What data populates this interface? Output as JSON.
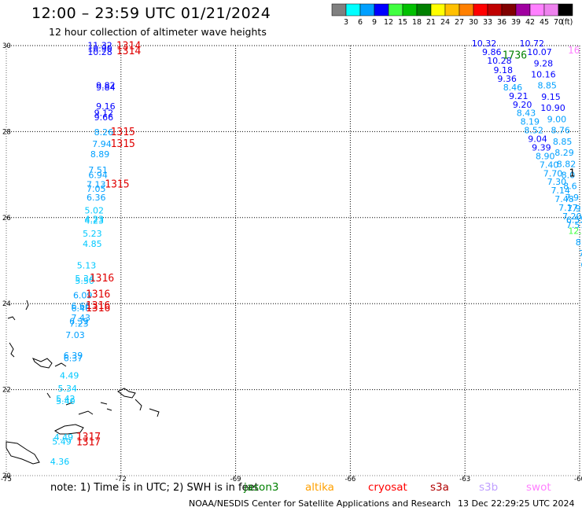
{
  "header": {
    "title": "12:00 – 23:59 UTC 01/21/2024",
    "subtitle": "12 hour collection of altimeter wave heights"
  },
  "colorbar": {
    "unit": "(ft)",
    "ticks": [
      "3",
      "6",
      "9",
      "12",
      "15",
      "18",
      "21",
      "24",
      "27",
      "30",
      "33",
      "36",
      "39",
      "42",
      "45",
      "70"
    ],
    "colors": [
      "#808080",
      "#00ffff",
      "#00a0ff",
      "#0000ff",
      "#40ff40",
      "#00c000",
      "#008000",
      "#ffff00",
      "#ffc000",
      "#ff8000",
      "#ff0000",
      "#c00000",
      "#800000",
      "#a000a0",
      "#ff80ff",
      "#ee82ee",
      "#000000"
    ]
  },
  "map": {
    "lon_min": -75,
    "lon_max": -60,
    "lat_min": 20,
    "lat_max": 30,
    "lon_ticks": [
      "-75",
      "-72",
      "-69",
      "-66",
      "-63",
      "-60"
    ],
    "lat_ticks": [
      "30",
      "28",
      "26",
      "24",
      "22",
      "20"
    ],
    "obs_track_a": [
      {
        "lon": -72.55,
        "lat": 29.94,
        "v": "11.32",
        "c": "#0000ff"
      },
      {
        "lon": -72.55,
        "lat": 29.86,
        "v": "10.90",
        "c": "#0000ff"
      },
      {
        "lon": -72.55,
        "lat": 29.78,
        "v": "10.28",
        "c": "#0000ff"
      },
      {
        "lon": -72.4,
        "lat": 29.0,
        "v": "9.82",
        "c": "#0000ff"
      },
      {
        "lon": -72.4,
        "lat": 28.96,
        "v": "9.84",
        "c": "#0000ff"
      },
      {
        "lon": -72.4,
        "lat": 28.52,
        "v": "9.16",
        "c": "#0000ff"
      },
      {
        "lon": -72.45,
        "lat": 28.36,
        "v": "9.12",
        "c": "#0000ff"
      },
      {
        "lon": -72.45,
        "lat": 28.26,
        "v": "9.66",
        "c": "#0000ff"
      },
      {
        "lon": -72.45,
        "lat": 27.92,
        "v": "8.26",
        "c": "#00a0ff"
      },
      {
        "lon": -72.5,
        "lat": 27.64,
        "v": "7.94",
        "c": "#00a0ff"
      },
      {
        "lon": -72.55,
        "lat": 27.4,
        "v": "8.89",
        "c": "#00a0ff"
      },
      {
        "lon": -72.6,
        "lat": 27.04,
        "v": "7.51",
        "c": "#00a0ff"
      },
      {
        "lon": -72.6,
        "lat": 26.92,
        "v": "6.94",
        "c": "#00a0ff"
      },
      {
        "lon": -72.65,
        "lat": 26.7,
        "v": "7.13",
        "c": "#00a0ff"
      },
      {
        "lon": -72.65,
        "lat": 26.6,
        "v": "7.05",
        "c": "#00a0ff"
      },
      {
        "lon": -72.65,
        "lat": 26.4,
        "v": "6.36",
        "c": "#00a0ff"
      },
      {
        "lon": -72.7,
        "lat": 26.1,
        "v": "5.02",
        "c": "#00c8ff"
      },
      {
        "lon": -72.7,
        "lat": 25.9,
        "v": "4.23",
        "c": "#00c8ff"
      },
      {
        "lon": -72.7,
        "lat": 25.86,
        "v": "4.23",
        "c": "#00c8ff"
      },
      {
        "lon": -72.75,
        "lat": 25.56,
        "v": "5.23",
        "c": "#00c8ff"
      },
      {
        "lon": -72.75,
        "lat": 25.32,
        "v": "4.85",
        "c": "#00c8ff"
      },
      {
        "lon": -72.9,
        "lat": 24.82,
        "v": "5.13",
        "c": "#00c8ff"
      },
      {
        "lon": -72.95,
        "lat": 24.52,
        "v": "5.34",
        "c": "#00c8ff"
      },
      {
        "lon": -72.95,
        "lat": 24.46,
        "v": "5.50",
        "c": "#00c8ff"
      },
      {
        "lon": -73.0,
        "lat": 24.12,
        "v": "6.09",
        "c": "#00a0ff"
      },
      {
        "lon": -73.05,
        "lat": 23.88,
        "v": "6.66",
        "c": "#00a0ff"
      },
      {
        "lon": -73.05,
        "lat": 23.82,
        "v": "6.46",
        "c": "#00a0ff"
      },
      {
        "lon": -73.05,
        "lat": 23.6,
        "v": "7.43",
        "c": "#00a0ff"
      },
      {
        "lon": -73.1,
        "lat": 23.52,
        "v": "6.39",
        "c": "#00a0ff"
      },
      {
        "lon": -73.1,
        "lat": 23.46,
        "v": "7.23",
        "c": "#00a0ff"
      },
      {
        "lon": -73.2,
        "lat": 23.2,
        "v": "7.03",
        "c": "#00a0ff"
      },
      {
        "lon": -73.25,
        "lat": 22.72,
        "v": "6.39",
        "c": "#00a0ff"
      },
      {
        "lon": -73.25,
        "lat": 22.66,
        "v": "6.37",
        "c": "#00a0ff"
      },
      {
        "lon": -73.35,
        "lat": 22.26,
        "v": "4.49",
        "c": "#00c8ff"
      },
      {
        "lon": -73.4,
        "lat": 21.96,
        "v": "5.34",
        "c": "#00c8ff"
      },
      {
        "lon": -73.45,
        "lat": 21.72,
        "v": "5.42",
        "c": "#00c8ff"
      },
      {
        "lon": -73.45,
        "lat": 21.66,
        "v": "5.40",
        "c": "#00c8ff"
      },
      {
        "lon": -73.5,
        "lat": 20.82,
        "v": "4.49",
        "c": "#00c8ff"
      },
      {
        "lon": -73.55,
        "lat": 20.72,
        "v": "5.49",
        "c": "#00c8ff"
      },
      {
        "lon": -73.6,
        "lat": 20.26,
        "v": "4.36",
        "c": "#00c8ff"
      }
    ],
    "pass_times_a": [
      {
        "lon": -71.8,
        "lat": 29.92,
        "v": "1314"
      },
      {
        "lon": -71.8,
        "lat": 29.8,
        "v": "1314"
      },
      {
        "lon": -71.95,
        "lat": 27.92,
        "v": "1315"
      },
      {
        "lon": -71.95,
        "lat": 27.64,
        "v": "1315"
      },
      {
        "lon": -72.1,
        "lat": 26.7,
        "v": "1315"
      },
      {
        "lon": -72.5,
        "lat": 24.52,
        "v": "1316"
      },
      {
        "lon": -72.6,
        "lat": 24.14,
        "v": "1316"
      },
      {
        "lon": -72.6,
        "lat": 23.88,
        "v": "1316"
      },
      {
        "lon": -72.6,
        "lat": 23.82,
        "v": "1316"
      },
      {
        "lon": -72.85,
        "lat": 20.82,
        "v": "1317"
      },
      {
        "lon": -72.85,
        "lat": 20.7,
        "v": "1317"
      }
    ],
    "obs_track_b": [
      {
        "lon": -62.5,
        "lat": 29.98,
        "v": "10.32",
        "c": "#0000ff"
      },
      {
        "lon": -62.3,
        "lat": 29.78,
        "v": "9.86",
        "c": "#0000ff"
      },
      {
        "lon": -62.1,
        "lat": 29.58,
        "v": "10.28",
        "c": "#0000ff"
      },
      {
        "lon": -62.0,
        "lat": 29.36,
        "v": "9.18",
        "c": "#0000ff"
      },
      {
        "lon": -61.9,
        "lat": 29.16,
        "v": "9.36",
        "c": "#0000ff"
      },
      {
        "lon": -61.75,
        "lat": 28.96,
        "v": "8.46",
        "c": "#00a0ff"
      },
      {
        "lon": -61.6,
        "lat": 28.76,
        "v": "9.21",
        "c": "#0000ff"
      },
      {
        "lon": -61.5,
        "lat": 28.56,
        "v": "9.20",
        "c": "#0000ff"
      },
      {
        "lon": -61.4,
        "lat": 28.36,
        "v": "8.43",
        "c": "#00a0ff"
      },
      {
        "lon": -61.3,
        "lat": 28.16,
        "v": "8.19",
        "c": "#00a0ff"
      },
      {
        "lon": -61.2,
        "lat": 27.96,
        "v": "8.52",
        "c": "#00a0ff"
      },
      {
        "lon": -61.1,
        "lat": 27.76,
        "v": "9.04",
        "c": "#0000ff"
      },
      {
        "lon": -61.0,
        "lat": 27.56,
        "v": "9.39",
        "c": "#0000ff"
      },
      {
        "lon": -60.9,
        "lat": 27.36,
        "v": "8.90",
        "c": "#00a0ff"
      },
      {
        "lon": -60.8,
        "lat": 27.16,
        "v": "7.40",
        "c": "#00a0ff"
      },
      {
        "lon": -60.7,
        "lat": 26.96,
        "v": "7.70",
        "c": "#00a0ff"
      },
      {
        "lon": -60.6,
        "lat": 26.76,
        "v": "7.30",
        "c": "#00a0ff"
      },
      {
        "lon": -60.5,
        "lat": 26.56,
        "v": "7.14",
        "c": "#00a0ff"
      },
      {
        "lon": -60.4,
        "lat": 26.36,
        "v": "7.48",
        "c": "#00a0ff"
      },
      {
        "lon": -60.3,
        "lat": 26.16,
        "v": "7.17",
        "c": "#00a0ff"
      },
      {
        "lon": -60.2,
        "lat": 25.96,
        "v": "7.20",
        "c": "#00a0ff"
      },
      {
        "lon": -60.1,
        "lat": 25.76,
        "v": "7.57",
        "c": "#00a0ff"
      }
    ],
    "obs_track_c": [
      {
        "lon": -61.25,
        "lat": 29.98,
        "v": "10.72",
        "c": "#0000ff"
      },
      {
        "lon": -61.05,
        "lat": 29.78,
        "v": "10.07",
        "c": "#0000ff"
      },
      {
        "lon": -60.95,
        "lat": 29.52,
        "v": "9.28",
        "c": "#0000ff"
      },
      {
        "lon": -60.95,
        "lat": 29.26,
        "v": "10.16",
        "c": "#0000ff"
      },
      {
        "lon": -60.85,
        "lat": 29.0,
        "v": "8.85",
        "c": "#00a0ff"
      },
      {
        "lon": -60.75,
        "lat": 28.74,
        "v": "9.15",
        "c": "#0000ff"
      },
      {
        "lon": -60.7,
        "lat": 28.48,
        "v": "10.90",
        "c": "#0000ff"
      },
      {
        "lon": -60.6,
        "lat": 28.22,
        "v": "9.00",
        "c": "#00a0ff"
      },
      {
        "lon": -60.5,
        "lat": 27.96,
        "v": "8.76",
        "c": "#00a0ff"
      },
      {
        "lon": -60.45,
        "lat": 27.7,
        "v": "8.85",
        "c": "#00a0ff"
      },
      {
        "lon": -60.4,
        "lat": 27.44,
        "v": "8.29",
        "c": "#00a0ff"
      },
      {
        "lon": -60.35,
        "lat": 27.18,
        "v": "8.82",
        "c": "#00a0ff"
      },
      {
        "lon": -60.3,
        "lat": 26.92,
        "v": "8.0",
        "c": "#00a0ff"
      },
      {
        "lon": -60.25,
        "lat": 26.66,
        "v": "8.6",
        "c": "#00a0ff"
      },
      {
        "lon": -60.2,
        "lat": 26.4,
        "v": "7.9",
        "c": "#00a0ff"
      },
      {
        "lon": -60.15,
        "lat": 26.14,
        "v": "7.9",
        "c": "#00a0ff"
      },
      {
        "lon": -60.1,
        "lat": 25.88,
        "v": "6.55",
        "c": "#00a0ff"
      },
      {
        "lon": -60.05,
        "lat": 25.62,
        "v": "12.0",
        "c": "#40ff40"
      },
      {
        "lon": -60.0,
        "lat": 25.36,
        "v": "8.",
        "c": "#00a0ff"
      },
      {
        "lon": -59.95,
        "lat": 25.1,
        "v": "7",
        "c": "#00a0ff"
      },
      {
        "lon": -59.9,
        "lat": 24.84,
        "v": "6",
        "c": "#00a0ff"
      }
    ],
    "pass_time_b": {
      "lon": -61.7,
      "lat": 29.7,
      "v": "1736"
    },
    "pass_time_c": {
      "lon": -60.2,
      "lat": 26.96,
      "v": "1"
    },
    "edge_label": {
      "lon": -60.15,
      "lat": 29.82,
      "v": "16"
    }
  },
  "footer": {
    "note": "note:  1) Time is in UTC;  2) SWH is in feet",
    "legend": [
      {
        "label": "jason3",
        "color": "#008000"
      },
      {
        "label": "altika",
        "color": "#ffa000"
      },
      {
        "label": "cryosat",
        "color": "#ff0000"
      },
      {
        "label": "s3a",
        "color": "#b00000"
      },
      {
        "label": "s3b",
        "color": "#c0a0ff"
      },
      {
        "label": "swot",
        "color": "#ff80ff"
      }
    ],
    "credit": "NOAA/NESDIS Center for Satellite Applications and Research",
    "timestamp": "13 Dec 22:29:25 UTC 2024"
  }
}
